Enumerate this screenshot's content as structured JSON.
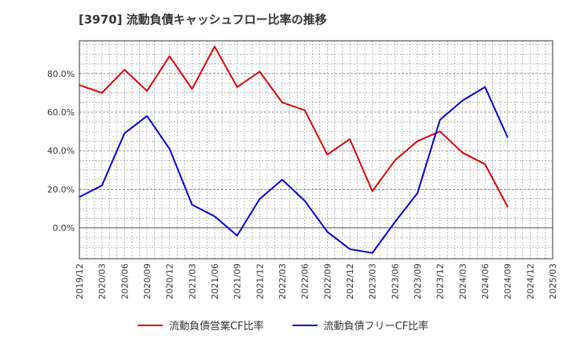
{
  "title": "[3970]  流動負債キャッシュフロー比率の推移",
  "chart_data": {
    "type": "line",
    "title": "[3970]  流動負債キャッシュフロー比率の推移",
    "xlabel": "",
    "ylabel": "",
    "x_ticks": [
      "2019/12",
      "2020/03",
      "2020/06",
      "2020/09",
      "2020/12",
      "2021/03",
      "2021/06",
      "2021/09",
      "2021/12",
      "2022/03",
      "2022/06",
      "2022/09",
      "2022/12",
      "2023/03",
      "2023/06",
      "2023/09",
      "2023/12",
      "2024/03",
      "2024/06",
      "2024/09",
      "2024/12",
      "2025/03"
    ],
    "y_ticks": [
      0,
      20,
      40,
      60,
      80
    ],
    "y_tick_labels": [
      "0.0%",
      "20.0%",
      "40.0%",
      "60.0%",
      "80.0%"
    ],
    "ylim": [
      -16,
      97
    ],
    "grid": true,
    "legend_position": "bottom",
    "series": [
      {
        "name": "流動負債営業CF比率",
        "color": "#dd0000",
        "x": [
          "2019/12",
          "2020/03",
          "2020/06",
          "2020/09",
          "2020/12",
          "2021/03",
          "2021/06",
          "2021/09",
          "2021/12",
          "2022/03",
          "2022/06",
          "2022/09",
          "2022/12",
          "2023/03",
          "2023/06",
          "2023/09",
          "2023/12",
          "2024/03",
          "2024/06",
          "2024/09"
        ],
        "values": [
          74,
          70,
          82,
          71,
          89,
          72,
          94,
          73,
          81,
          65,
          61,
          38,
          46,
          19,
          35,
          45,
          50,
          39,
          33,
          11
        ]
      },
      {
        "name": "流動負債フリーCF比率",
        "color": "#0000cc",
        "x": [
          "2019/12",
          "2020/03",
          "2020/06",
          "2020/09",
          "2020/12",
          "2021/03",
          "2021/06",
          "2021/09",
          "2021/12",
          "2022/03",
          "2022/06",
          "2022/09",
          "2022/12",
          "2023/03",
          "2023/06",
          "2023/09",
          "2023/12",
          "2024/03",
          "2024/06",
          "2024/09"
        ],
        "values": [
          16,
          22,
          49,
          58,
          41,
          12,
          6,
          -4,
          15,
          25,
          14,
          -2,
          -11,
          -13,
          3,
          18,
          56,
          66,
          73,
          47
        ]
      }
    ]
  }
}
